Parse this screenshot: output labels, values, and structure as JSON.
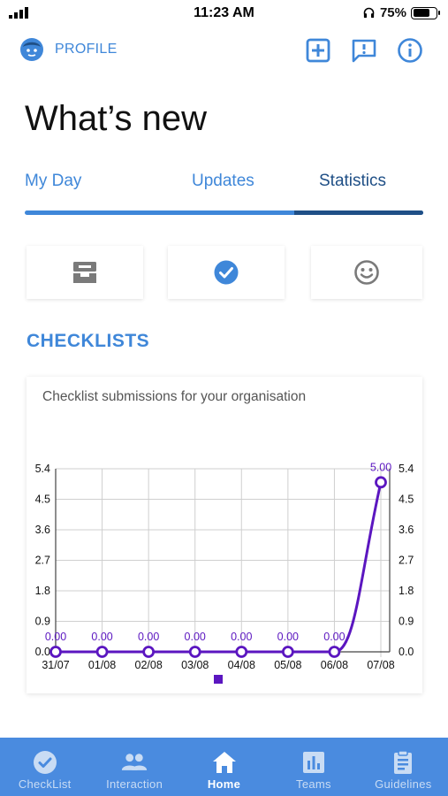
{
  "status_bar": {
    "time": "11:23 AM",
    "battery": "75%",
    "battery_level": 0.75
  },
  "header": {
    "profile_label": "PROFILE",
    "icons": [
      "profile-avatar-icon",
      "add-box-icon",
      "feedback-icon",
      "info-icon"
    ]
  },
  "page": {
    "title": "What’s new"
  },
  "tabs": [
    {
      "label": "My Day"
    },
    {
      "label": "Updates"
    },
    {
      "label": "Statistics"
    }
  ],
  "category_cards": [
    "inbox-tray-icon",
    "check-circle-icon",
    "smiley-icon"
  ],
  "section": {
    "heading": "CHECKLISTS"
  },
  "chart_data": {
    "type": "line",
    "title": "Checklist submissions for your organisation",
    "xlabel": "",
    "ylabel": "",
    "categories": [
      "31/07",
      "01/08",
      "02/08",
      "03/08",
      "04/08",
      "05/08",
      "06/08",
      "07/08"
    ],
    "series": [
      {
        "values": [
          0,
          0,
          0,
          0,
          0,
          0,
          0,
          5
        ],
        "value_labels": [
          "0.00",
          "0.00",
          "0.00",
          "0.00",
          "0.00",
          "0.00",
          "0.00",
          "5.00"
        ],
        "color": "#5b16c0"
      }
    ],
    "ylim": [
      0,
      5.4
    ],
    "yticks": [
      "0.0",
      "0.9",
      "1.8",
      "2.7",
      "3.6",
      "4.5",
      "5.4"
    ],
    "ytick_values": [
      0,
      0.9,
      1.8,
      2.7,
      3.6,
      4.5,
      5.4
    ],
    "right_axis": true,
    "grid": true,
    "legend": "bottom-center"
  },
  "bottom_nav": [
    {
      "label": "CheckList",
      "icon": "check-circle-icon"
    },
    {
      "label": "Interaction",
      "icon": "people-icon"
    },
    {
      "label": "Home",
      "icon": "home-icon",
      "active": true
    },
    {
      "label": "Teams",
      "icon": "bar-chart-icon"
    },
    {
      "label": "Guidelines",
      "icon": "clipboard-icon"
    }
  ],
  "colors": {
    "accent": "#3f87d9",
    "accent_dark": "#1f4f86",
    "nav_bg": "#4a8bdf",
    "series": "#5b16c0"
  }
}
